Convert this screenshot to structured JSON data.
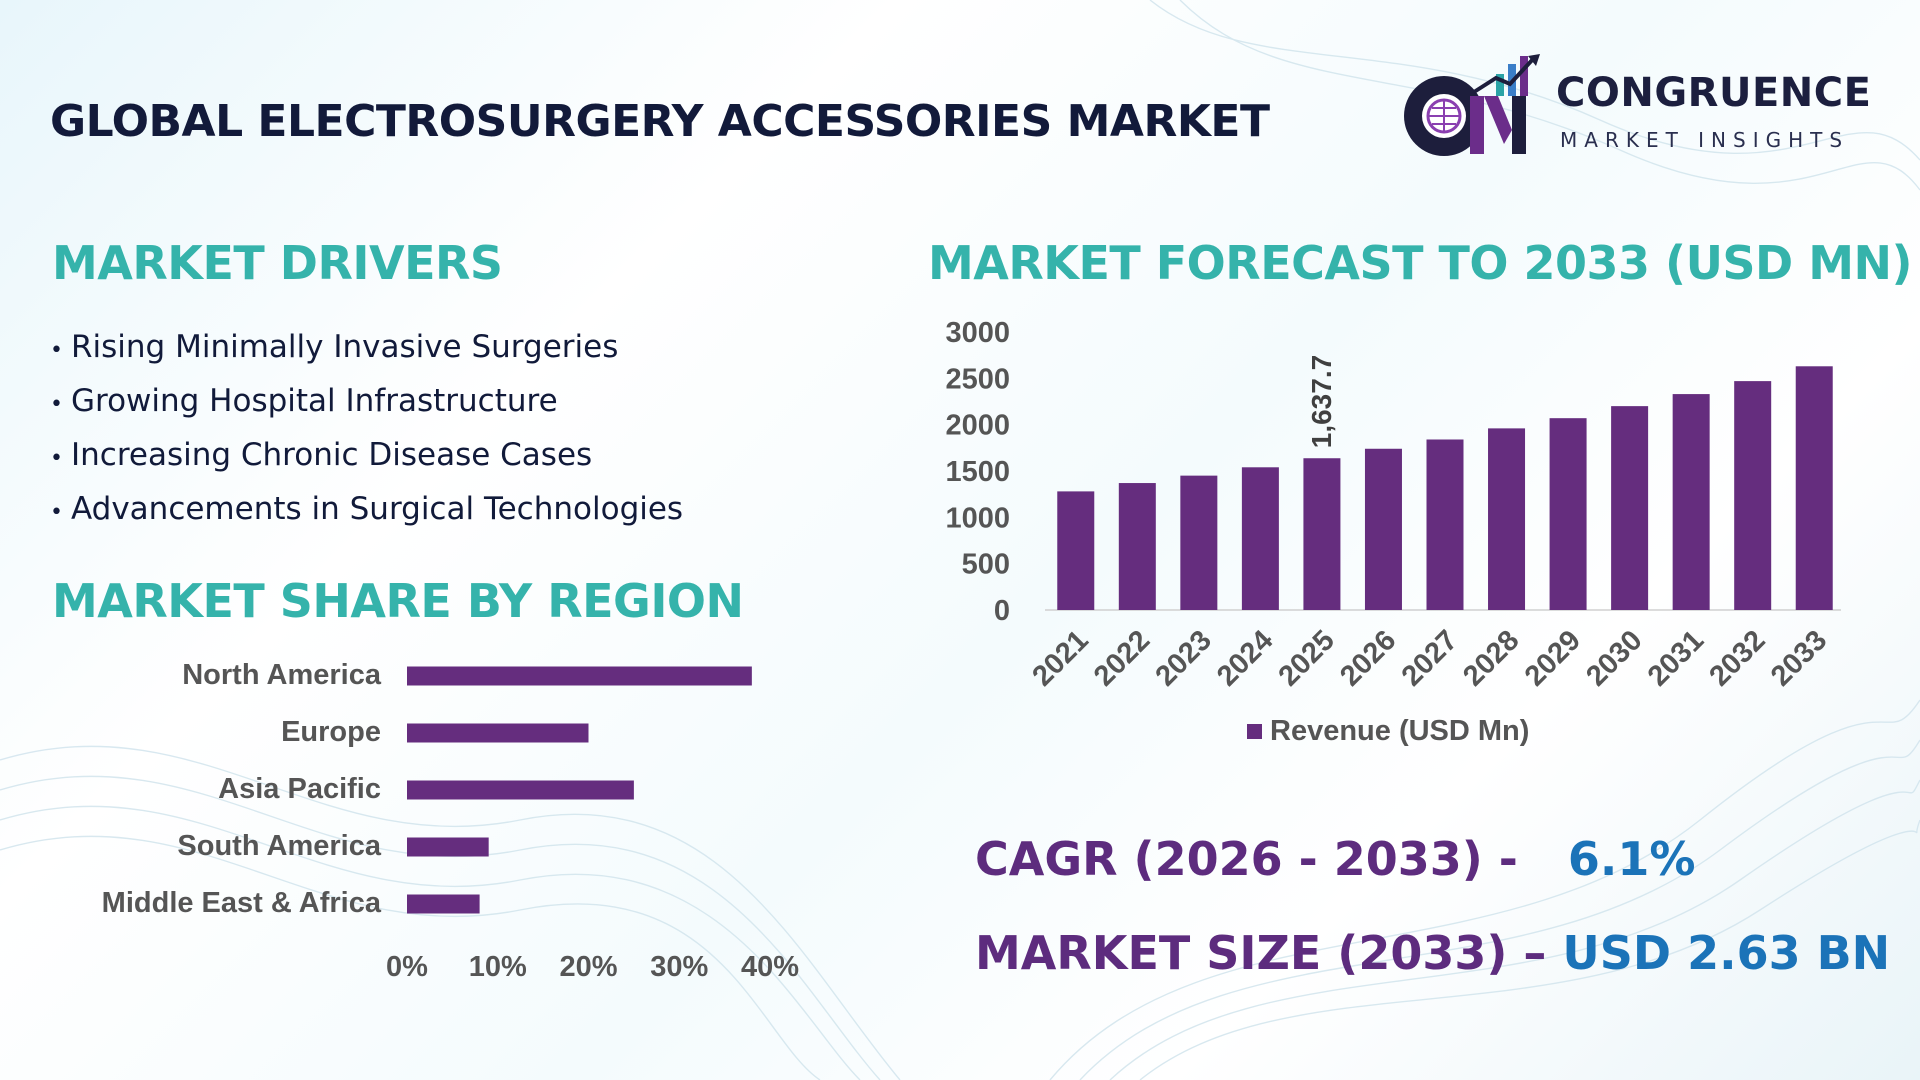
{
  "header": {
    "title": "GLOBAL ELECTROSURGERY ACCESSORIES MARKET"
  },
  "logo": {
    "mark_letters": "CM",
    "name": "CONGRUENCE",
    "tagline": "MARKET INSIGHTS"
  },
  "drivers": {
    "heading": "MARKET DRIVERS",
    "bullet": "•",
    "items": [
      "Rising Minimally Invasive Surgeries",
      "Growing Hospital Infrastructure",
      "Increasing Chronic Disease Cases",
      "Advancements in Surgical Technologies"
    ]
  },
  "region": {
    "heading": "MARKET SHARE BY REGION"
  },
  "forecast": {
    "heading": "MARKET FORECAST TO 2033 (USD MN)"
  },
  "stats": {
    "cagr_label": "CAGR (2026 - 2033) -",
    "cagr_value": "6.1%",
    "size_label": "MARKET SIZE (2033) –",
    "size_value": "USD 2.63 BN"
  },
  "colors": {
    "bar": "#652d7e",
    "heading": "#35b3ab",
    "title": "#121a3a",
    "stat_label": "#5d2c7e",
    "stat_value": "#1b73b8"
  },
  "chart_data": [
    {
      "type": "bar",
      "orientation": "horizontal",
      "title": "MARKET SHARE BY REGION",
      "categories": [
        "North America",
        "Europe",
        "Asia Pacific",
        "South America",
        "Middle East & Africa"
      ],
      "values": [
        38,
        20,
        25,
        9,
        8
      ],
      "value_unit": "%",
      "xlim": [
        0,
        40
      ],
      "x_ticks": [
        "0%",
        "10%",
        "20%",
        "30%",
        "40%"
      ],
      "grid": false,
      "legend": "none"
    },
    {
      "type": "bar",
      "orientation": "vertical",
      "title": "MARKET FORECAST TO 2033 (USD MN)",
      "categories": [
        "2021",
        "2022",
        "2023",
        "2024",
        "2025",
        "2026",
        "2027",
        "2028",
        "2029",
        "2030",
        "2031",
        "2032",
        "2033"
      ],
      "series": [
        {
          "name": "Revenue (USD Mn)",
          "values": [
            1280,
            1370,
            1450,
            1540,
            1637.7,
            1740,
            1840,
            1960,
            2070,
            2200,
            2330,
            2470,
            2630
          ]
        }
      ],
      "data_labels": [
        {
          "category": "2025",
          "text": "1,637.7"
        }
      ],
      "ylim": [
        0,
        3000
      ],
      "y_ticks": [
        "0",
        "500",
        "1000",
        "1500",
        "2000",
        "2500",
        "3000"
      ],
      "grid": false,
      "legend": "bottom"
    }
  ]
}
